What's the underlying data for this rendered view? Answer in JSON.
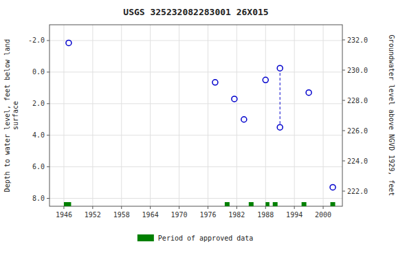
{
  "chart_data": {
    "type": "scatter",
    "title": "USGS 325232082283001 26X015",
    "y_label": "Depth to water level, feet below land\nsurface",
    "y2_label": "Groundwater level above NGVD 1929, feet",
    "xlim": [
      1943,
      2004
    ],
    "ylim": [
      8.5,
      -3.0
    ],
    "y2lim": [
      221.0,
      233.0
    ],
    "xticks": [
      1946,
      1952,
      1958,
      1964,
      1970,
      1976,
      1982,
      1988,
      1994,
      2000
    ],
    "yticks": [
      {
        "value": -2.0,
        "label": "-2.0"
      },
      {
        "value": 0.0,
        "label": "0.0"
      },
      {
        "value": 2.0,
        "label": "2.0"
      },
      {
        "value": 4.0,
        "label": "4.0"
      },
      {
        "value": 6.0,
        "label": "6.0"
      },
      {
        "value": 8.0,
        "label": "8.0"
      }
    ],
    "y2ticks": [
      {
        "value": 222.0,
        "label": "222.0"
      },
      {
        "value": 224.0,
        "label": "224.0"
      },
      {
        "value": 226.0,
        "label": "226.0"
      },
      {
        "value": 228.0,
        "label": "228.0"
      },
      {
        "value": 230.0,
        "label": "230.0"
      },
      {
        "value": 232.0,
        "label": "232.0"
      }
    ],
    "x": [
      1947.0,
      1977.5,
      1981.5,
      1983.5,
      1988.0,
      1991.0,
      1991.0,
      1997.0,
      2002.0
    ],
    "values": [
      -1.85,
      0.65,
      1.7,
      3.0,
      0.5,
      -0.25,
      3.5,
      1.3,
      7.3
    ],
    "color": "#0000cc",
    "marker": "circle",
    "vertical_line": {
      "x": 1991.0,
      "values": [
        -0.25,
        3.5
      ],
      "line_style": "dashed"
    },
    "approved_periods": {
      "name": "Period of approved data",
      "color": "#008000",
      "ranges": [
        [
          1946.0,
          1947.5
        ],
        [
          1979.5,
          1980.5
        ],
        [
          1984.5,
          1985.5
        ],
        [
          1988.0,
          1988.8
        ],
        [
          1989.5,
          1990.5
        ],
        [
          1995.5,
          1996.5
        ],
        [
          2001.5,
          2002.5
        ]
      ]
    },
    "grid": true,
    "legend": "bottom"
  }
}
